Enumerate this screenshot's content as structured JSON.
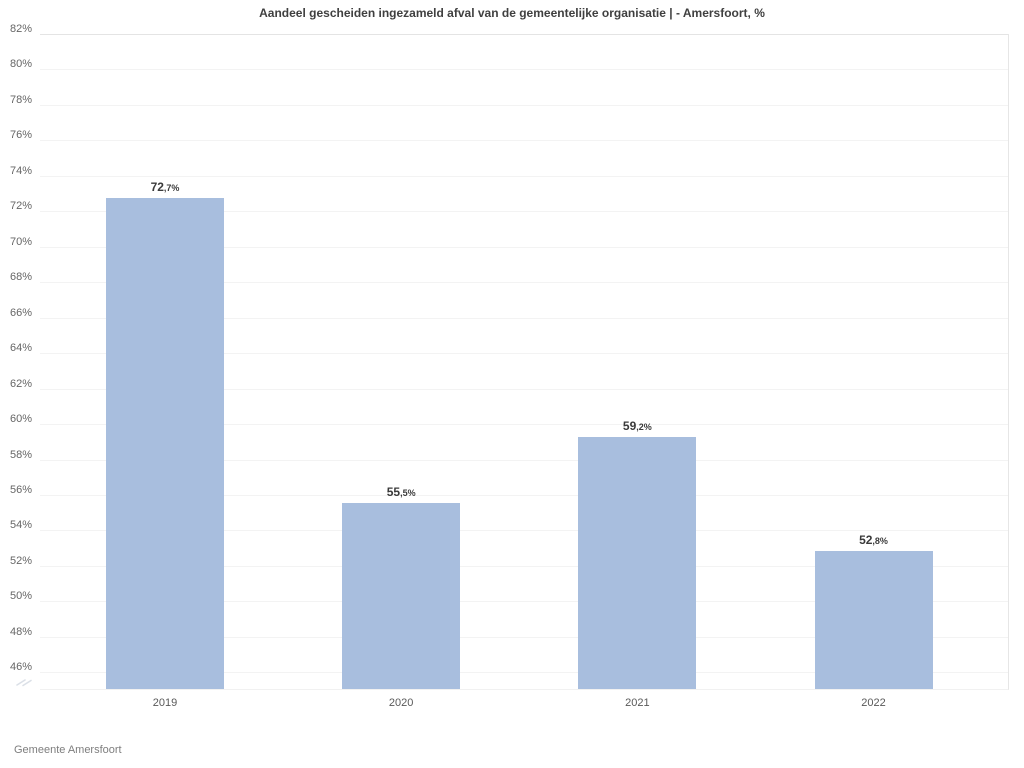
{
  "chart_data": {
    "type": "bar",
    "title": "Aandeel gescheiden ingezameld afval van de gemeentelijke organisatie | - Amersfoort, %",
    "categories": [
      "2019",
      "2020",
      "2021",
      "2022"
    ],
    "values": [
      72.7,
      55.5,
      59.2,
      52.8
    ],
    "value_labels": [
      "72,7%",
      "55,5%",
      "59,2%",
      "52,8%"
    ],
    "xlabel": "",
    "ylabel": "",
    "ylim": [
      45,
      82
    ],
    "y_ticks": [
      46,
      48,
      50,
      52,
      54,
      56,
      58,
      60,
      62,
      64,
      66,
      68,
      70,
      72,
      74,
      76,
      78,
      80,
      82
    ],
    "y_tick_labels": [
      "46%",
      "48%",
      "50%",
      "52%",
      "54%",
      "56%",
      "58%",
      "60%",
      "62%",
      "64%",
      "66%",
      "68%",
      "70%",
      "72%",
      "74%",
      "76%",
      "78%",
      "80%",
      "82%"
    ],
    "grid": true,
    "axis_break": true,
    "legend": "none",
    "bar_color": "#a8bede"
  },
  "footer": {
    "source": "Gemeente Amersfoort"
  },
  "colors": {
    "background": "#ffffff",
    "bar": "#a8bede",
    "gridline": "#f3f3f3",
    "top_gridline": "#e4e4e4",
    "axis_text": "#666666",
    "value_text": "#3a3a3a",
    "title_text": "#404040",
    "source_text": "#7e7e7e"
  }
}
